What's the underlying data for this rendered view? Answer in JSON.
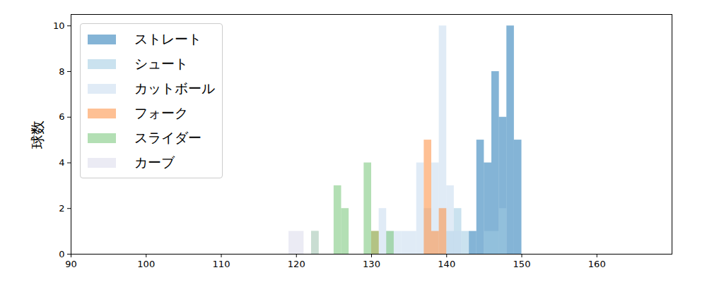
{
  "chart_data": {
    "type": "histogram",
    "ylabel": "球数",
    "xlim": [
      90,
      170
    ],
    "xticks": [
      90,
      100,
      110,
      120,
      130,
      140,
      150,
      160
    ],
    "ylim": [
      0,
      10.5
    ],
    "yticks": [
      0,
      2,
      4,
      6,
      8,
      10
    ],
    "legend": "upper left",
    "series": [
      {
        "name": "ストレート",
        "color": "#1f77b4",
        "bins": [
          143,
          144,
          145,
          146,
          147,
          148,
          149,
          150
        ],
        "values": [
          1,
          5,
          4,
          8,
          6,
          10,
          5
        ]
      },
      {
        "name": "シュート",
        "color": "#9ecae1",
        "bins": [
          140,
          141,
          142,
          143,
          144,
          145,
          146,
          147,
          148
        ],
        "values": [
          1,
          2,
          1,
          0,
          0,
          1,
          1,
          2
        ]
      },
      {
        "name": "カットボール",
        "color": "#c6dbef",
        "bins": [
          131,
          132,
          133,
          134,
          135,
          136,
          137,
          138,
          139,
          140,
          141,
          142
        ],
        "values": [
          2,
          1,
          1,
          1,
          1,
          4,
          2,
          4,
          10,
          3,
          1
        ]
      },
      {
        "name": "フォーク",
        "color": "#fd8d3c",
        "bins": [
          130,
          131,
          132,
          133,
          134,
          135,
          136,
          137,
          138,
          139,
          140
        ],
        "values": [
          1,
          0,
          0,
          0,
          0,
          0,
          0,
          5,
          1,
          2
        ]
      },
      {
        "name": "スライダー",
        "color": "#74c476",
        "bins": [
          122,
          123,
          124,
          125,
          126,
          127,
          128,
          129,
          130,
          131,
          132,
          133
        ],
        "values": [
          1,
          0,
          0,
          3,
          2,
          0,
          0,
          4,
          1,
          0,
          1
        ]
      },
      {
        "name": "カーブ",
        "color": "#dadaeb",
        "bins": [
          119,
          121,
          122,
          123
        ],
        "values": [
          1,
          0,
          1
        ]
      }
    ]
  }
}
